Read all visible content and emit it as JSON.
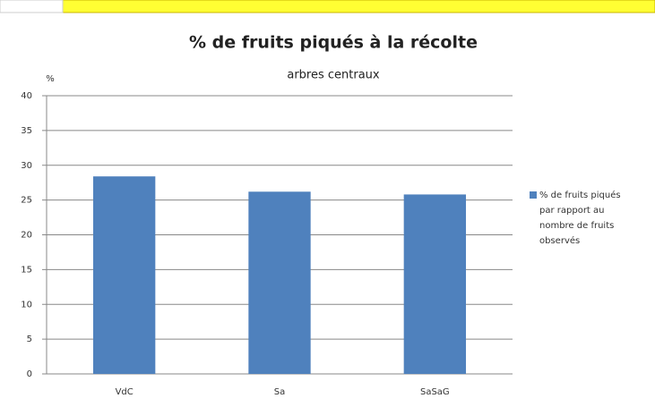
{
  "chart_data": {
    "type": "bar",
    "title": "% de fruits piqués à la récolte",
    "subtitle": "arbres centraux",
    "y_label": "%",
    "categories": [
      "VdC",
      "Sa",
      "SaSaG"
    ],
    "series": [
      {
        "name": "% de fruits piqués par rapport au nombre de fruits observés",
        "color": "#4f81bd",
        "values": [
          28.4,
          26.2,
          25.8
        ]
      }
    ],
    "ylim": [
      0,
      40
    ],
    "yticks": [
      0,
      5,
      10,
      15,
      20,
      25,
      30,
      35,
      40
    ],
    "grid": true,
    "legend": "right"
  }
}
